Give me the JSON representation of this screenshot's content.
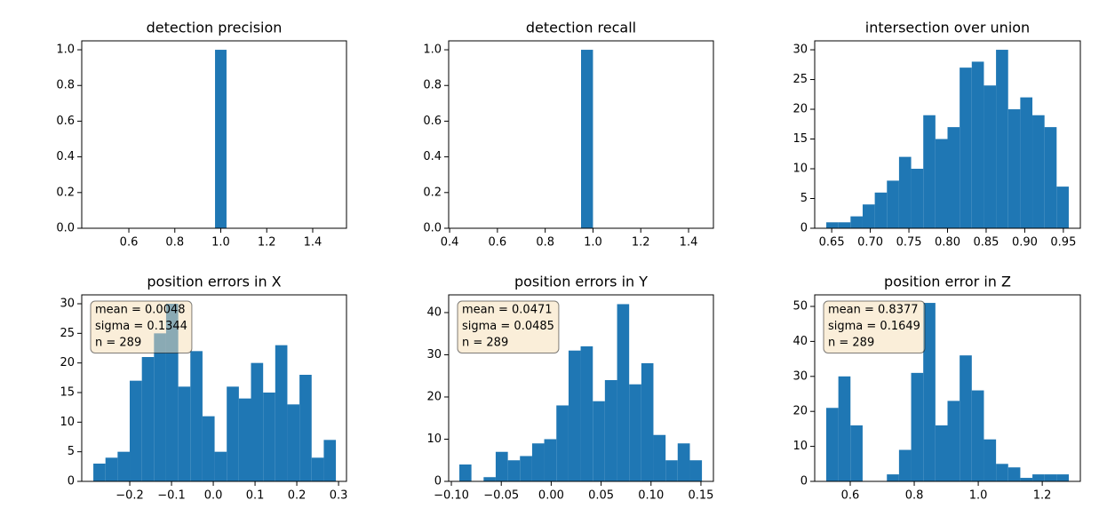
{
  "chart_data": [
    {
      "type": "histogram",
      "title": "detection precision",
      "color": "#1f77b4",
      "bins": [
        0.975,
        1.025
      ],
      "values": [
        1
      ],
      "xlim": [
        0.395,
        1.547
      ],
      "ylim": [
        0,
        1.05
      ],
      "xticks": [
        0.6,
        0.8,
        {
          "value": 1,
          "label": "1.0"
        },
        1.2,
        1.4
      ],
      "yticks": [
        {
          "value": 0,
          "label": "0.0"
        },
        0.2,
        0.4,
        0.6,
        0.8,
        {
          "value": 1,
          "label": "1.0"
        }
      ]
    },
    {
      "type": "histogram",
      "title": "detection recall",
      "color": "#1f77b4",
      "bins": [
        0.95,
        1.0
      ],
      "values": [
        1
      ],
      "xlim": [
        0.396,
        1.504
      ],
      "ylim": [
        0,
        1.05
      ],
      "xticks": [
        0.4,
        0.6,
        0.8,
        {
          "value": 1,
          "label": "1.0"
        },
        1.2,
        1.4
      ],
      "yticks": [
        {
          "value": 0,
          "label": "0.0"
        },
        0.2,
        0.4,
        0.6,
        0.8,
        {
          "value": 1,
          "label": "1.0"
        }
      ]
    },
    {
      "type": "histogram",
      "title": "intersection over union",
      "color": "#1f77b4",
      "bins": [
        0.643,
        0.6587,
        0.6744,
        0.6901,
        0.7058,
        0.7215,
        0.7372,
        0.7529,
        0.7686,
        0.7843,
        0.8,
        0.8157,
        0.8314,
        0.8471,
        0.8628,
        0.8785,
        0.8942,
        0.9099,
        0.9256,
        0.9413,
        0.957
      ],
      "values": [
        1,
        1,
        2,
        4,
        6,
        8,
        12,
        10,
        19,
        15,
        17,
        27,
        28,
        24,
        30,
        20,
        22,
        19,
        17,
        7
      ],
      "xlim": [
        0.628,
        0.972
      ],
      "ylim": [
        0,
        31.5
      ],
      "xticks": [
        0.65,
        {
          "value": 0.7,
          "label": "0.70"
        },
        0.75,
        {
          "value": 0.8,
          "label": "0.80"
        },
        0.85,
        {
          "value": 0.9,
          "label": "0.90"
        },
        0.95
      ],
      "yticks": [
        0,
        5,
        10,
        15,
        20,
        25,
        30
      ]
    },
    {
      "type": "histogram",
      "title": "position errors in X",
      "color": "#1f77b4",
      "bins": [
        -0.2872,
        -0.2582,
        -0.2291,
        -0.2001,
        -0.171,
        -0.142,
        -0.113,
        -0.0839,
        -0.0549,
        -0.0258,
        0.0032,
        0.0322,
        0.0613,
        0.0903,
        0.1194,
        0.1484,
        0.1774,
        0.2065,
        0.2355,
        0.2646,
        0.2936
      ],
      "values": [
        3,
        4,
        5,
        17,
        21,
        25,
        30,
        16,
        22,
        11,
        5,
        16,
        14,
        20,
        15,
        23,
        13,
        18,
        4,
        7
      ],
      "xlim": [
        -0.315,
        0.319
      ],
      "ylim": [
        0,
        31.5
      ],
      "xticks": [
        {
          "value": -0.2,
          "label": "−0.2"
        },
        {
          "value": -0.1,
          "label": "−0.1"
        },
        {
          "value": 0,
          "label": "0.0"
        },
        0.1,
        0.2,
        0.3
      ],
      "yticks": [
        0,
        5,
        10,
        15,
        20,
        25,
        30
      ],
      "annotations": [
        "mean = 0.0048",
        "sigma = 0.1344",
        "n = 289"
      ]
    },
    {
      "type": "histogram",
      "title": "position errors in Y",
      "color": "#1f77b4",
      "bins": [
        -0.092,
        -0.0799,
        -0.0677,
        -0.0556,
        -0.0434,
        -0.0313,
        -0.0191,
        -0.007,
        0.0052,
        0.0174,
        0.0295,
        0.0417,
        0.0538,
        0.066,
        0.0781,
        0.0903,
        0.1024,
        0.1146,
        0.1267,
        0.1389,
        0.151
      ],
      "values": [
        4,
        0,
        1,
        7,
        5,
        6,
        9,
        10,
        18,
        31,
        32,
        19,
        24,
        42,
        23,
        28,
        11,
        5,
        9,
        5
      ],
      "xlim": [
        -0.1027,
        0.1625
      ],
      "ylim": [
        0,
        44.2
      ],
      "xticks": [
        {
          "value": -0.1,
          "label": "−0.10"
        },
        {
          "value": -0.05,
          "label": "−0.05"
        },
        {
          "value": 0,
          "label": "0.00"
        },
        0.05,
        {
          "value": 0.1,
          "label": "0.10"
        },
        0.15
      ],
      "yticks": [
        0,
        10,
        20,
        30,
        40
      ],
      "annotations": [
        "mean = 0.0471",
        "sigma = 0.0485",
        "n = 289"
      ]
    },
    {
      "type": "histogram",
      "title": "position error in Z",
      "color": "#1f77b4",
      "bins": [
        0.525,
        0.5629,
        0.6008,
        0.6387,
        0.6766,
        0.7145,
        0.7524,
        0.7903,
        0.8282,
        0.8661,
        0.904,
        0.9419,
        0.9798,
        1.0177,
        1.0556,
        1.0935,
        1.1314,
        1.1693,
        1.2072,
        1.2451,
        1.283
      ],
      "values": [
        21,
        30,
        16,
        0,
        0,
        2,
        9,
        31,
        51,
        16,
        23,
        36,
        26,
        12,
        5,
        4,
        1,
        2,
        2,
        2
      ],
      "xlim": [
        0.489,
        1.319
      ],
      "ylim": [
        0,
        53.3
      ],
      "xticks": [
        0.6,
        0.8,
        {
          "value": 1,
          "label": "1.0"
        },
        1.2
      ],
      "yticks": [
        0,
        10,
        20,
        30,
        40,
        50
      ],
      "annotations": [
        "mean = 0.8377",
        "sigma = 0.1649",
        "n = 289"
      ]
    }
  ]
}
